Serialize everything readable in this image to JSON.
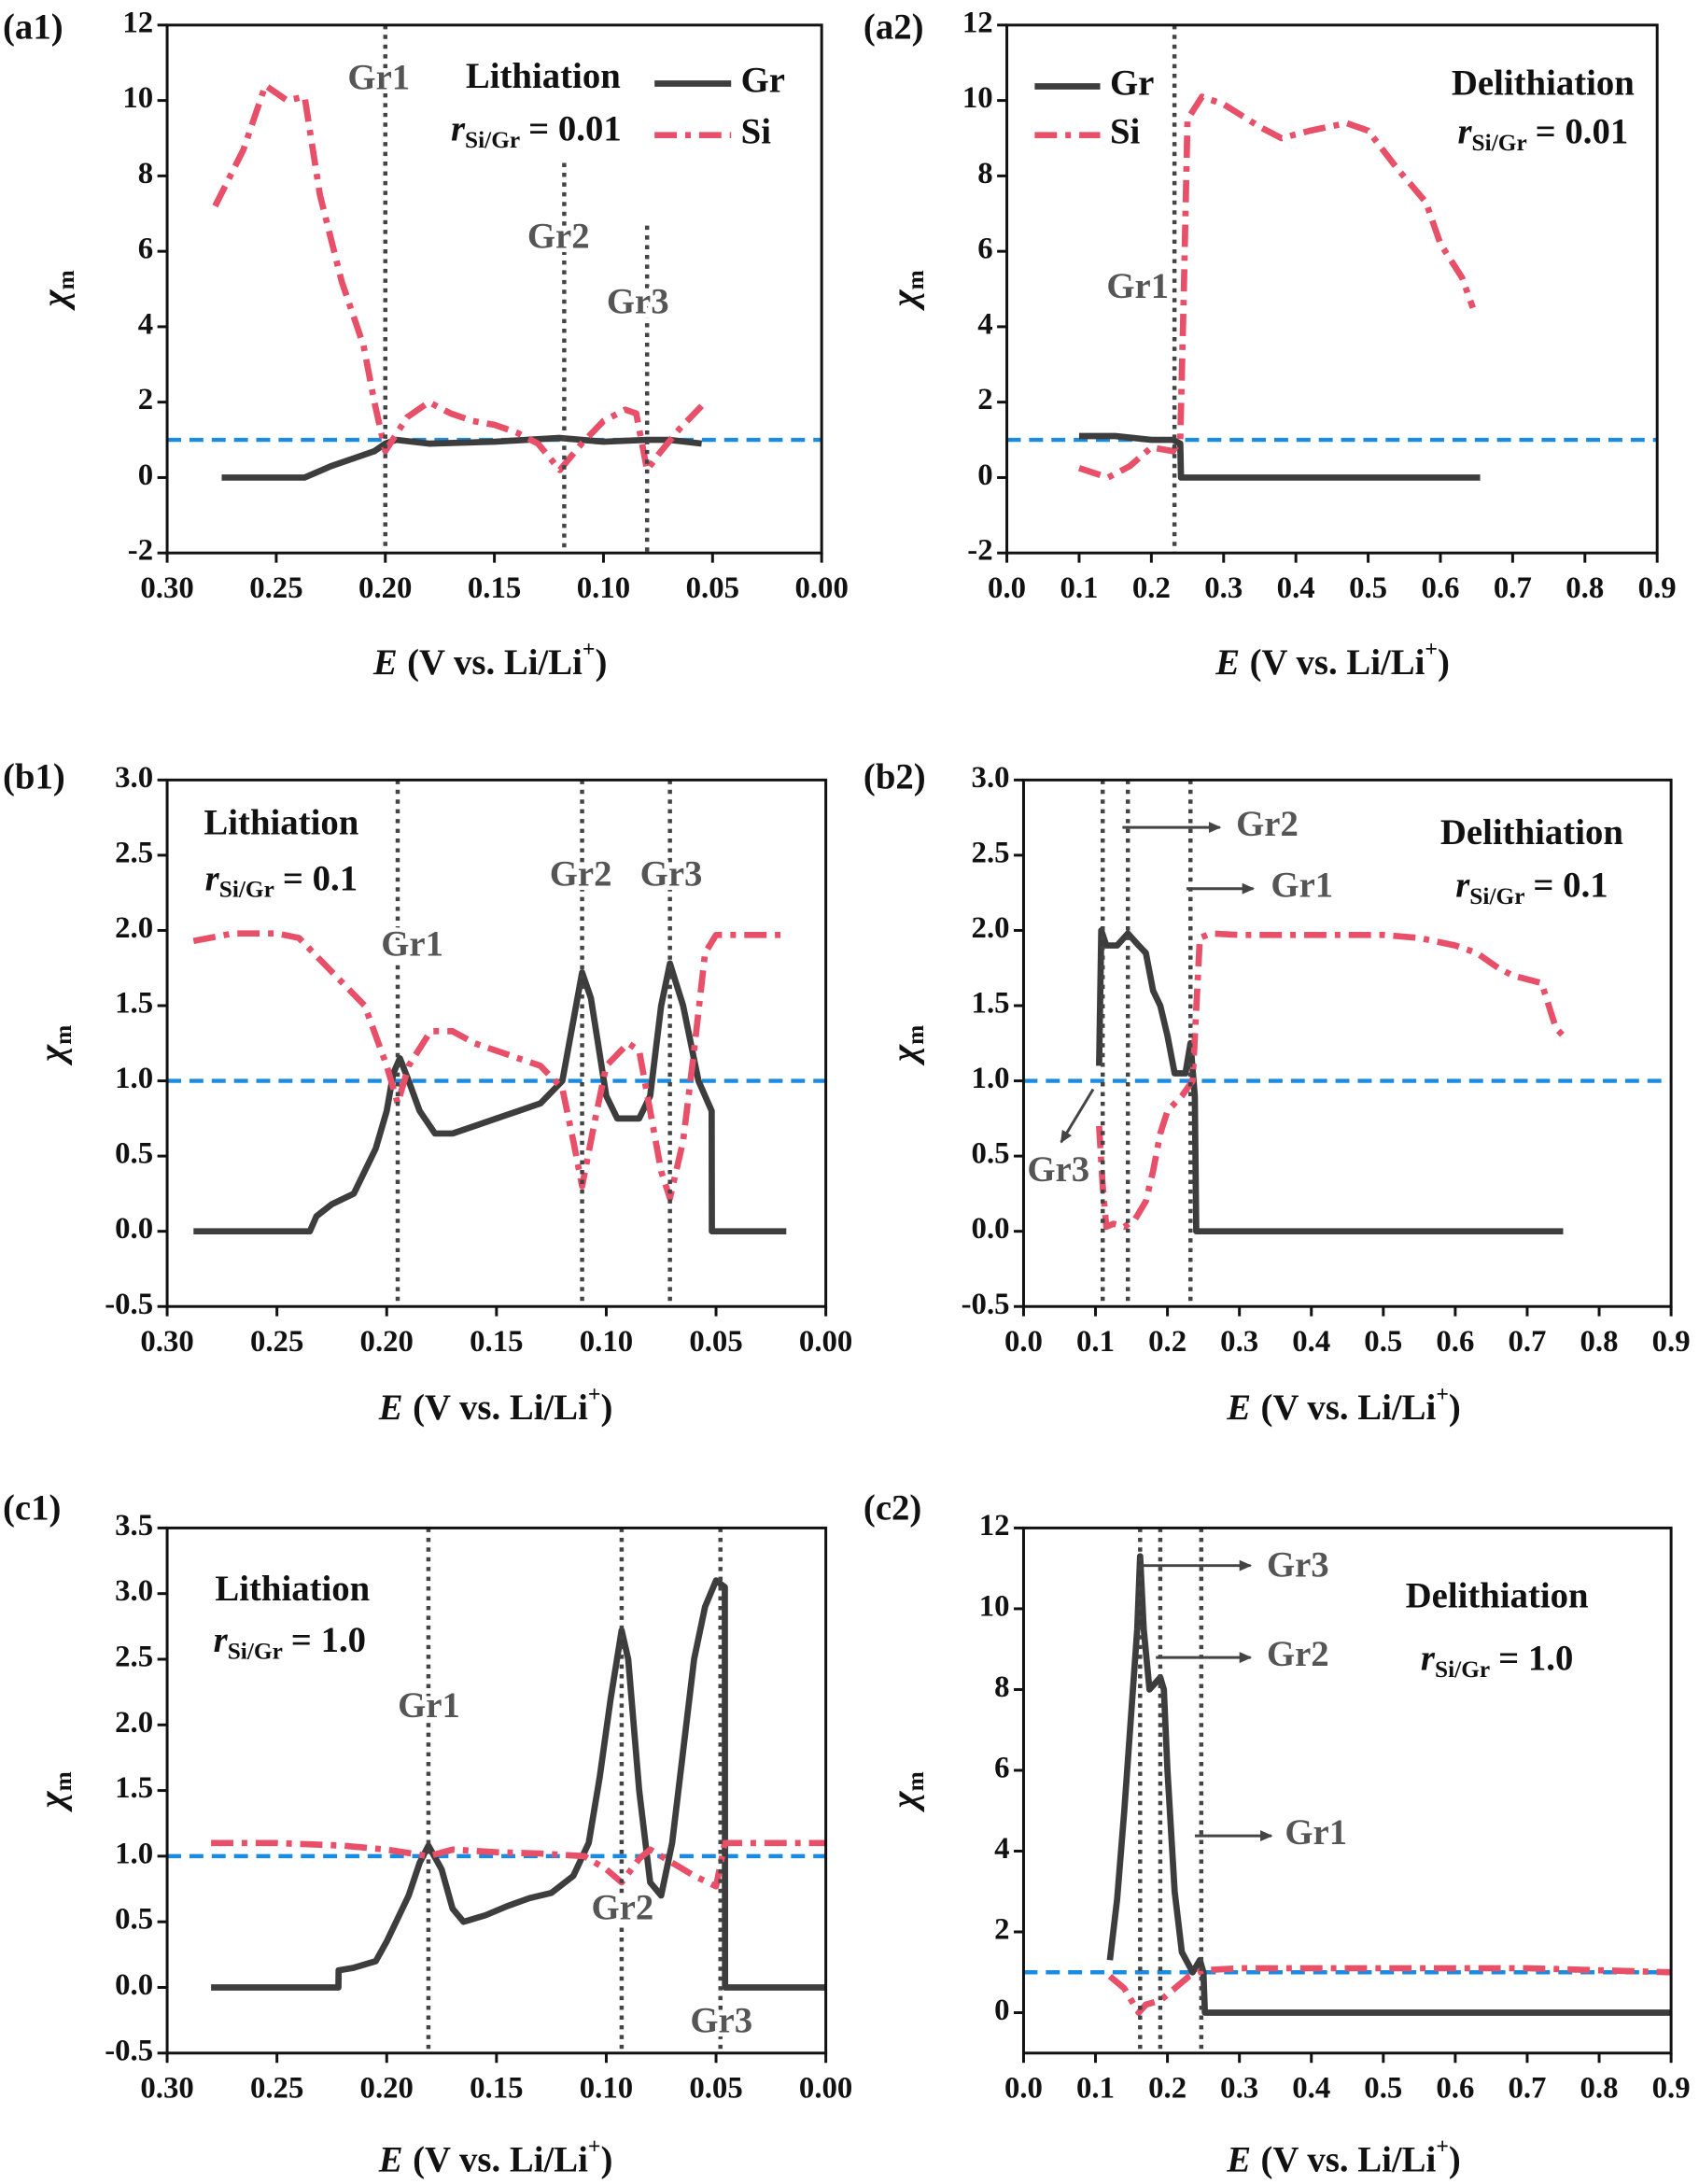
{
  "chart_data": [
    {
      "type": "line",
      "panel_label": "(a1)",
      "condition": {
        "label": "Lithiation",
        "ratio_symbol": "r",
        "ratio_subscript": "Si/Gr",
        "ratio_value": "= 0.01"
      },
      "x_label": {
        "symbol": "E",
        "text": "(V vs. Li/Li",
        "superscript": "+",
        "close": ")"
      },
      "y_label": {
        "symbol": "χ",
        "subscript": "m"
      },
      "xlim": [
        0.3,
        0
      ],
      "ylim": [
        -2,
        12
      ],
      "xticks": [
        {
          "value": 0.3,
          "label": "0.30"
        },
        0.25,
        {
          "value": 0.2,
          "label": "0.20"
        },
        0.15,
        {
          "value": 0.1,
          "label": "0.10"
        },
        0.05,
        {
          "value": 0,
          "label": "0.00"
        }
      ],
      "yticks": [
        -2,
        0,
        2,
        4,
        6,
        8,
        10,
        12
      ],
      "legend": "upper right",
      "hline": {
        "value": 1,
        "color": "#1a8be0"
      },
      "vlines": [
        {
          "x": 0.2,
          "label": "Gr1"
        },
        {
          "x": 0.118,
          "label": "Gr2"
        },
        {
          "x": 0.08,
          "label": "Gr3"
        }
      ],
      "series": [
        {
          "name": "Gr",
          "color": "#3d3d3d",
          "style": "solid",
          "x": [
            0.275,
            0.237,
            0.225,
            0.215,
            0.205,
            0.2,
            0.195,
            0.18,
            0.15,
            0.12,
            0.1,
            0.08,
            0.07,
            0.055
          ],
          "values": [
            0,
            0,
            0.3,
            0.5,
            0.7,
            0.9,
            1.0,
            0.9,
            0.95,
            1.05,
            0.95,
            1.0,
            1.0,
            0.9
          ]
        },
        {
          "name": "Si",
          "color": "#e8506a",
          "style": "dash-dot",
          "x": [
            0.278,
            0.265,
            0.255,
            0.245,
            0.237,
            0.23,
            0.22,
            0.21,
            0.205,
            0.2,
            0.19,
            0.18,
            0.17,
            0.16,
            0.15,
            0.14,
            0.13,
            0.12,
            0.11,
            0.1,
            0.09,
            0.085,
            0.08,
            0.075,
            0.065,
            0.055
          ],
          "values": [
            7.2,
            8.7,
            10.4,
            10.0,
            10.1,
            7.5,
            5.2,
            3.5,
            2.0,
            0.7,
            1.6,
            2.0,
            1.7,
            1.5,
            1.4,
            1.2,
            0.9,
            0.2,
            0.9,
            1.5,
            1.8,
            1.7,
            0.2,
            0.6,
            1.3,
            1.9
          ]
        }
      ]
    },
    {
      "type": "line",
      "panel_label": "(a2)",
      "condition": {
        "label": "Delithiation",
        "ratio_symbol": "r",
        "ratio_subscript": "Si/Gr",
        "ratio_value": "= 0.01"
      },
      "x_label": {
        "symbol": "E",
        "text": "(V vs. Li/Li",
        "superscript": "+",
        "close": ")"
      },
      "y_label": {
        "symbol": "χ",
        "subscript": "m"
      },
      "xlim": [
        0,
        0.9
      ],
      "ylim": [
        -2,
        12
      ],
      "xticks": [
        {
          "value": 0,
          "label": "0.0"
        },
        0.1,
        0.2,
        0.3,
        0.4,
        0.5,
        0.6,
        0.7,
        0.8,
        0.9
      ],
      "yticks": [
        -2,
        0,
        2,
        4,
        6,
        8,
        10,
        12
      ],
      "legend": "upper left",
      "hline": {
        "value": 1,
        "color": "#1a8be0"
      },
      "vlines": [
        {
          "x": 0.232,
          "label": "Gr1"
        }
      ],
      "series": [
        {
          "name": "Gr",
          "color": "#3d3d3d",
          "style": "solid",
          "x": [
            0.1,
            0.15,
            0.2,
            0.23,
            0.24,
            0.241,
            0.655
          ],
          "values": [
            1.1,
            1.1,
            1.0,
            1.0,
            0.9,
            0,
            0
          ]
        },
        {
          "name": "Si",
          "color": "#e8506a",
          "style": "dash-dot",
          "x": [
            0.1,
            0.14,
            0.17,
            0.2,
            0.23,
            0.24,
            0.245,
            0.25,
            0.27,
            0.3,
            0.35,
            0.38,
            0.42,
            0.47,
            0.5,
            0.54,
            0.58,
            0.6,
            0.63,
            0.645
          ],
          "values": [
            0.25,
            0,
            0.3,
            0.8,
            0.7,
            1.0,
            5,
            9.5,
            10.1,
            9.9,
            9.3,
            9.0,
            9.2,
            9.4,
            9.2,
            8.2,
            7.3,
            6.2,
            5.3,
            4.5
          ]
        }
      ]
    },
    {
      "type": "line",
      "panel_label": "(b1)",
      "condition": {
        "label": "Lithiation",
        "ratio_symbol": "r",
        "ratio_subscript": "Si/Gr",
        "ratio_value": "= 0.1"
      },
      "x_label": {
        "symbol": "E",
        "text": "(V vs. Li/Li",
        "superscript": "+",
        "close": ")"
      },
      "y_label": {
        "symbol": "χ",
        "subscript": "m"
      },
      "xlim": [
        0.3,
        0
      ],
      "ylim": [
        -0.5,
        3
      ],
      "xticks": [
        {
          "value": 0.3,
          "label": "0.30"
        },
        0.25,
        {
          "value": 0.2,
          "label": "0.20"
        },
        0.15,
        {
          "value": 0.1,
          "label": "0.10"
        },
        0.05,
        {
          "value": 0,
          "label": "0.00"
        }
      ],
      "yticks": [
        -0.5,
        {
          "value": 0,
          "label": "0.0"
        },
        0.5,
        {
          "value": 1,
          "label": "1.0"
        },
        1.5,
        {
          "value": 2,
          "label": "2.0"
        },
        2.5,
        {
          "value": 3,
          "label": "3.0"
        }
      ],
      "hline": {
        "value": 1,
        "color": "#1a8be0"
      },
      "vlines": [
        {
          "x": 0.195,
          "label": "Gr1"
        },
        {
          "x": 0.111,
          "label": "Gr2"
        },
        {
          "x": 0.071,
          "label": "Gr3"
        }
      ],
      "series": [
        {
          "color": "#3d3d3d",
          "style": "solid",
          "x": [
            0.288,
            0.235,
            0.232,
            0.225,
            0.215,
            0.21,
            0.205,
            0.2,
            0.197,
            0.194,
            0.19,
            0.185,
            0.178,
            0.17,
            0.16,
            0.15,
            0.14,
            0.13,
            0.12,
            0.115,
            0.111,
            0.107,
            0.1,
            0.095,
            0.09,
            0.085,
            0.08,
            0.075,
            0.071,
            0.065,
            0.058,
            0.052,
            0.0519,
            0.018
          ],
          "values": [
            0,
            0,
            0.1,
            0.18,
            0.25,
            0.4,
            0.55,
            0.8,
            1.05,
            1.15,
            1.0,
            0.8,
            0.65,
            0.65,
            0.7,
            0.75,
            0.8,
            0.85,
            1.0,
            1.4,
            1.72,
            1.55,
            0.9,
            0.75,
            0.75,
            0.75,
            0.9,
            1.5,
            1.78,
            1.5,
            1.0,
            0.8,
            0,
            0
          ]
        },
        {
          "color": "#e8506a",
          "style": "dash-dot",
          "x": [
            0.288,
            0.27,
            0.25,
            0.24,
            0.23,
            0.21,
            0.2,
            0.195,
            0.19,
            0.18,
            0.17,
            0.16,
            0.14,
            0.13,
            0.12,
            0.115,
            0.111,
            0.105,
            0.1,
            0.09,
            0.085,
            0.08,
            0.075,
            0.071,
            0.065,
            0.06,
            0.055,
            0.05,
            0.02
          ],
          "values": [
            1.93,
            1.98,
            1.98,
            1.95,
            1.8,
            1.5,
            1.1,
            0.85,
            1.1,
            1.33,
            1.33,
            1.25,
            1.15,
            1.1,
            0.95,
            0.6,
            0.3,
            0.75,
            1.1,
            1.25,
            1.2,
            0.8,
            0.4,
            0.22,
            0.6,
            1.2,
            1.85,
            1.97,
            1.97
          ]
        }
      ]
    },
    {
      "type": "line",
      "panel_label": "(b2)",
      "condition": {
        "label": "Delithiation",
        "ratio_symbol": "r",
        "ratio_subscript": "Si/Gr",
        "ratio_value": "= 0.1"
      },
      "x_label": {
        "symbol": "E",
        "text": "(V vs. Li/Li",
        "superscript": "+",
        "close": ")"
      },
      "y_label": {
        "symbol": "χ",
        "subscript": "m"
      },
      "xlim": [
        0,
        0.9
      ],
      "ylim": [
        -0.5,
        3
      ],
      "xticks": [
        {
          "value": 0,
          "label": "0.0"
        },
        0.1,
        0.2,
        0.3,
        0.4,
        0.5,
        0.6,
        0.7,
        0.8,
        0.9
      ],
      "yticks": [
        -0.5,
        {
          "value": 0,
          "label": "0.0"
        },
        0.5,
        {
          "value": 1,
          "label": "1.0"
        },
        1.5,
        {
          "value": 2,
          "label": "2.0"
        },
        2.5,
        {
          "value": 3,
          "label": "3.0"
        }
      ],
      "hline": {
        "value": 1,
        "color": "#1a8be0"
      },
      "vlines": [
        {
          "x": 0.11,
          "label": "Gr3"
        },
        {
          "x": 0.145,
          "label": "Gr2"
        },
        {
          "x": 0.232,
          "label": "Gr1"
        }
      ],
      "series": [
        {
          "color": "#3d3d3d",
          "style": "solid",
          "x": [
            0.105,
            0.108,
            0.115,
            0.13,
            0.145,
            0.16,
            0.17,
            0.18,
            0.19,
            0.2,
            0.21,
            0.22,
            0.225,
            0.232,
            0.238,
            0.24,
            0.75
          ],
          "values": [
            1.1,
            2.0,
            1.9,
            1.9,
            1.98,
            1.9,
            1.85,
            1.6,
            1.5,
            1.3,
            1.05,
            1.05,
            1.05,
            1.25,
            0.9,
            0,
            0
          ]
        },
        {
          "color": "#e8506a",
          "style": "dash-dot",
          "x": [
            0.105,
            0.11,
            0.115,
            0.125,
            0.14,
            0.155,
            0.17,
            0.18,
            0.19,
            0.2,
            0.22,
            0.235,
            0.245,
            0.26,
            0.3,
            0.4,
            0.5,
            0.55,
            0.6,
            0.63,
            0.66,
            0.68,
            0.72,
            0.74,
            0.75
          ],
          "values": [
            0.7,
            0.3,
            0.03,
            0.05,
            0.03,
            0.08,
            0.2,
            0.4,
            0.65,
            0.8,
            0.9,
            1.0,
            1.95,
            1.98,
            1.97,
            1.97,
            1.97,
            1.95,
            1.9,
            1.85,
            1.75,
            1.7,
            1.65,
            1.35,
            1.3
          ]
        }
      ]
    },
    {
      "type": "line",
      "panel_label": "(c1)",
      "condition": {
        "label": "Lithiation",
        "ratio_symbol": "r",
        "ratio_subscript": "Si/Gr",
        "ratio_value": "= 1.0"
      },
      "x_label": {
        "symbol": "E",
        "text": "(V vs. Li/Li",
        "superscript": "+",
        "close": ")"
      },
      "y_label": {
        "symbol": "χ",
        "subscript": "m"
      },
      "xlim": [
        0.3,
        0
      ],
      "ylim": [
        -0.5,
        3.5
      ],
      "xticks": [
        {
          "value": 0.3,
          "label": "0.30"
        },
        0.25,
        {
          "value": 0.2,
          "label": "0.20"
        },
        0.15,
        {
          "value": 0.1,
          "label": "0.10"
        },
        0.05,
        {
          "value": 0,
          "label": "0.00"
        }
      ],
      "yticks": [
        -0.5,
        {
          "value": 0,
          "label": "0.0"
        },
        0.5,
        {
          "value": 1,
          "label": "1.0"
        },
        1.5,
        {
          "value": 2,
          "label": "2.0"
        },
        2.5,
        {
          "value": 3,
          "label": "3.0"
        },
        3.5
      ],
      "hline": {
        "value": 1,
        "color": "#1a8be0"
      },
      "vlines": [
        {
          "x": 0.181,
          "label": "Gr1"
        },
        {
          "x": 0.093,
          "label": "Gr2"
        },
        {
          "x": 0.048,
          "label": "Gr3"
        }
      ],
      "series": [
        {
          "color": "#3d3d3d",
          "style": "solid",
          "x": [
            0.28,
            0.222,
            0.2219,
            0.215,
            0.205,
            0.2,
            0.19,
            0.185,
            0.181,
            0.175,
            0.17,
            0.165,
            0.155,
            0.145,
            0.135,
            0.125,
            0.115,
            0.108,
            0.103,
            0.098,
            0.093,
            0.09,
            0.085,
            0.08,
            0.075,
            0.07,
            0.065,
            0.06,
            0.055,
            0.05,
            0.046,
            0.0459,
            0
          ],
          "values": [
            0,
            0,
            0.13,
            0.15,
            0.2,
            0.35,
            0.7,
            0.95,
            1.08,
            0.9,
            0.6,
            0.5,
            0.55,
            0.62,
            0.68,
            0.72,
            0.85,
            1.1,
            1.6,
            2.2,
            2.72,
            2.5,
            1.5,
            0.8,
            0.7,
            1.1,
            1.8,
            2.5,
            2.9,
            3.1,
            3.05,
            0,
            0
          ]
        },
        {
          "color": "#e8506a",
          "style": "dash-dot",
          "x": [
            0.28,
            0.25,
            0.22,
            0.2,
            0.181,
            0.17,
            0.15,
            0.13,
            0.11,
            0.1,
            0.093,
            0.085,
            0.08,
            0.07,
            0.06,
            0.05,
            0.046,
            0
          ],
          "values": [
            1.1,
            1.1,
            1.08,
            1.05,
            1.0,
            1.05,
            1.03,
            1.02,
            1.0,
            0.9,
            0.8,
            0.98,
            1.05,
            0.95,
            0.85,
            0.77,
            1.1,
            1.1
          ]
        }
      ]
    },
    {
      "type": "line",
      "panel_label": "(c2)",
      "condition": {
        "label": "Delithiation",
        "ratio_symbol": "r",
        "ratio_subscript": "Si/Gr",
        "ratio_value": "= 1.0"
      },
      "x_label": {
        "symbol": "E",
        "text": "(V vs. Li/Li",
        "superscript": "+",
        "close": ")"
      },
      "y_label": {
        "symbol": "χ",
        "subscript": "m"
      },
      "xlim": [
        0,
        0.9
      ],
      "ylim": [
        -1,
        12
      ],
      "xticks": [
        {
          "value": 0,
          "label": "0.0"
        },
        0.1,
        0.2,
        0.3,
        0.4,
        0.5,
        0.6,
        0.7,
        0.8,
        0.9
      ],
      "yticks": [
        0,
        2,
        4,
        6,
        8,
        10,
        12
      ],
      "hline": {
        "value": 1,
        "color": "#1a8be0"
      },
      "vlines": [
        {
          "x": 0.162,
          "label": "Gr3"
        },
        {
          "x": 0.19,
          "label": "Gr2"
        },
        {
          "x": 0.247,
          "label": "Gr1"
        }
      ],
      "series": [
        {
          "color": "#3d3d3d",
          "style": "solid",
          "x": [
            0.12,
            0.13,
            0.14,
            0.15,
            0.158,
            0.162,
            0.167,
            0.175,
            0.18,
            0.19,
            0.195,
            0.2,
            0.21,
            0.22,
            0.235,
            0.245,
            0.25,
            0.252,
            0.9
          ],
          "values": [
            1.3,
            2.8,
            5.0,
            7.5,
            9.5,
            11.3,
            9.5,
            8.0,
            8.1,
            8.3,
            8.0,
            6.0,
            3.0,
            1.5,
            1.0,
            1.3,
            1.0,
            0,
            0
          ]
        },
        {
          "color": "#e8506a",
          "style": "dash-dot",
          "x": [
            0.12,
            0.14,
            0.16,
            0.17,
            0.19,
            0.21,
            0.23,
            0.25,
            0.3,
            0.5,
            0.7,
            0.8,
            0.9
          ],
          "values": [
            0.9,
            0.6,
            0,
            0.2,
            0.3,
            0.6,
            0.9,
            1.05,
            1.1,
            1.1,
            1.1,
            1.05,
            1.0
          ]
        }
      ]
    }
  ]
}
